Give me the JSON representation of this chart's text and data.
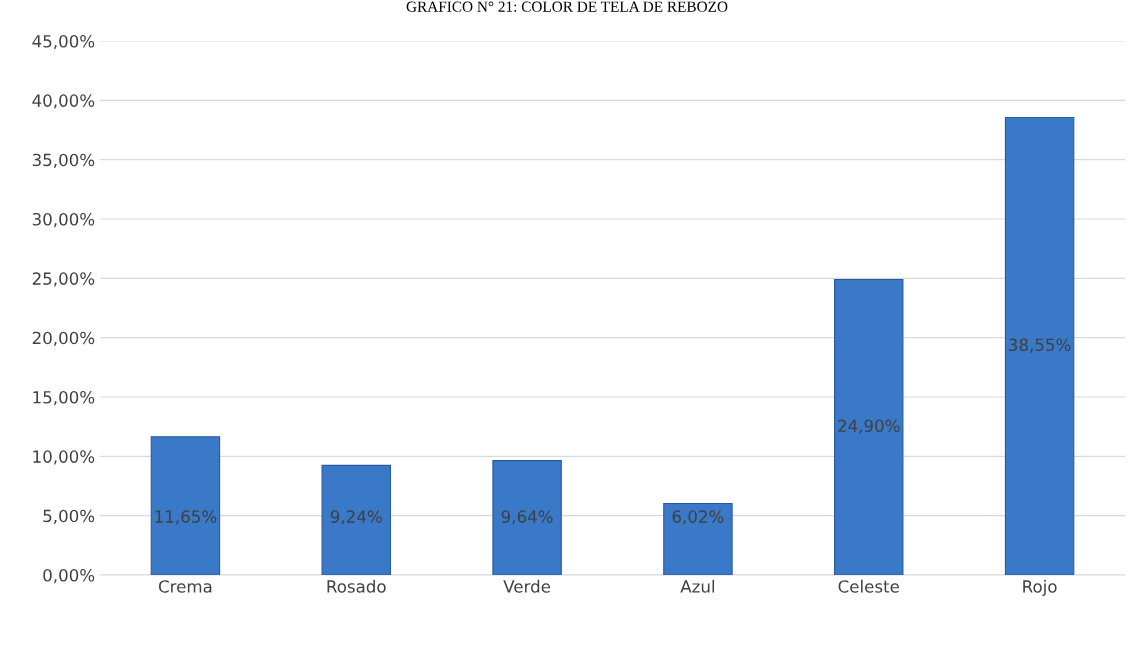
{
  "chart_data": {
    "type": "bar",
    "title": "GRAFICO N° 21: COLOR DE TELA DE REBOZO",
    "categories": [
      "Crema",
      "Rosado",
      "Verde",
      "Azul",
      "Celeste",
      "Rojo"
    ],
    "values": [
      11.65,
      9.24,
      9.64,
      6.02,
      24.9,
      38.55
    ],
    "value_labels": [
      "11,65%",
      "9,24%",
      "9,64%",
      "6,02%",
      "24,90%",
      "38,55%"
    ],
    "color": "#3a78c8",
    "ylim": [
      0,
      45
    ],
    "yticks": [
      {
        "value": 0,
        "label": "0,00%"
      },
      {
        "value": 5,
        "label": "5,00%"
      },
      {
        "value": 10,
        "label": "10,00%"
      },
      {
        "value": 15,
        "label": "15,00%"
      },
      {
        "value": 20,
        "label": "20,00%"
      },
      {
        "value": 25,
        "label": "25,00%"
      },
      {
        "value": 30,
        "label": "30,00%"
      },
      {
        "value": 35,
        "label": "35,00%"
      },
      {
        "value": 40,
        "label": "40,00%"
      },
      {
        "value": 45,
        "label": "45,00%"
      }
    ],
    "grid": "y",
    "legend": false
  }
}
